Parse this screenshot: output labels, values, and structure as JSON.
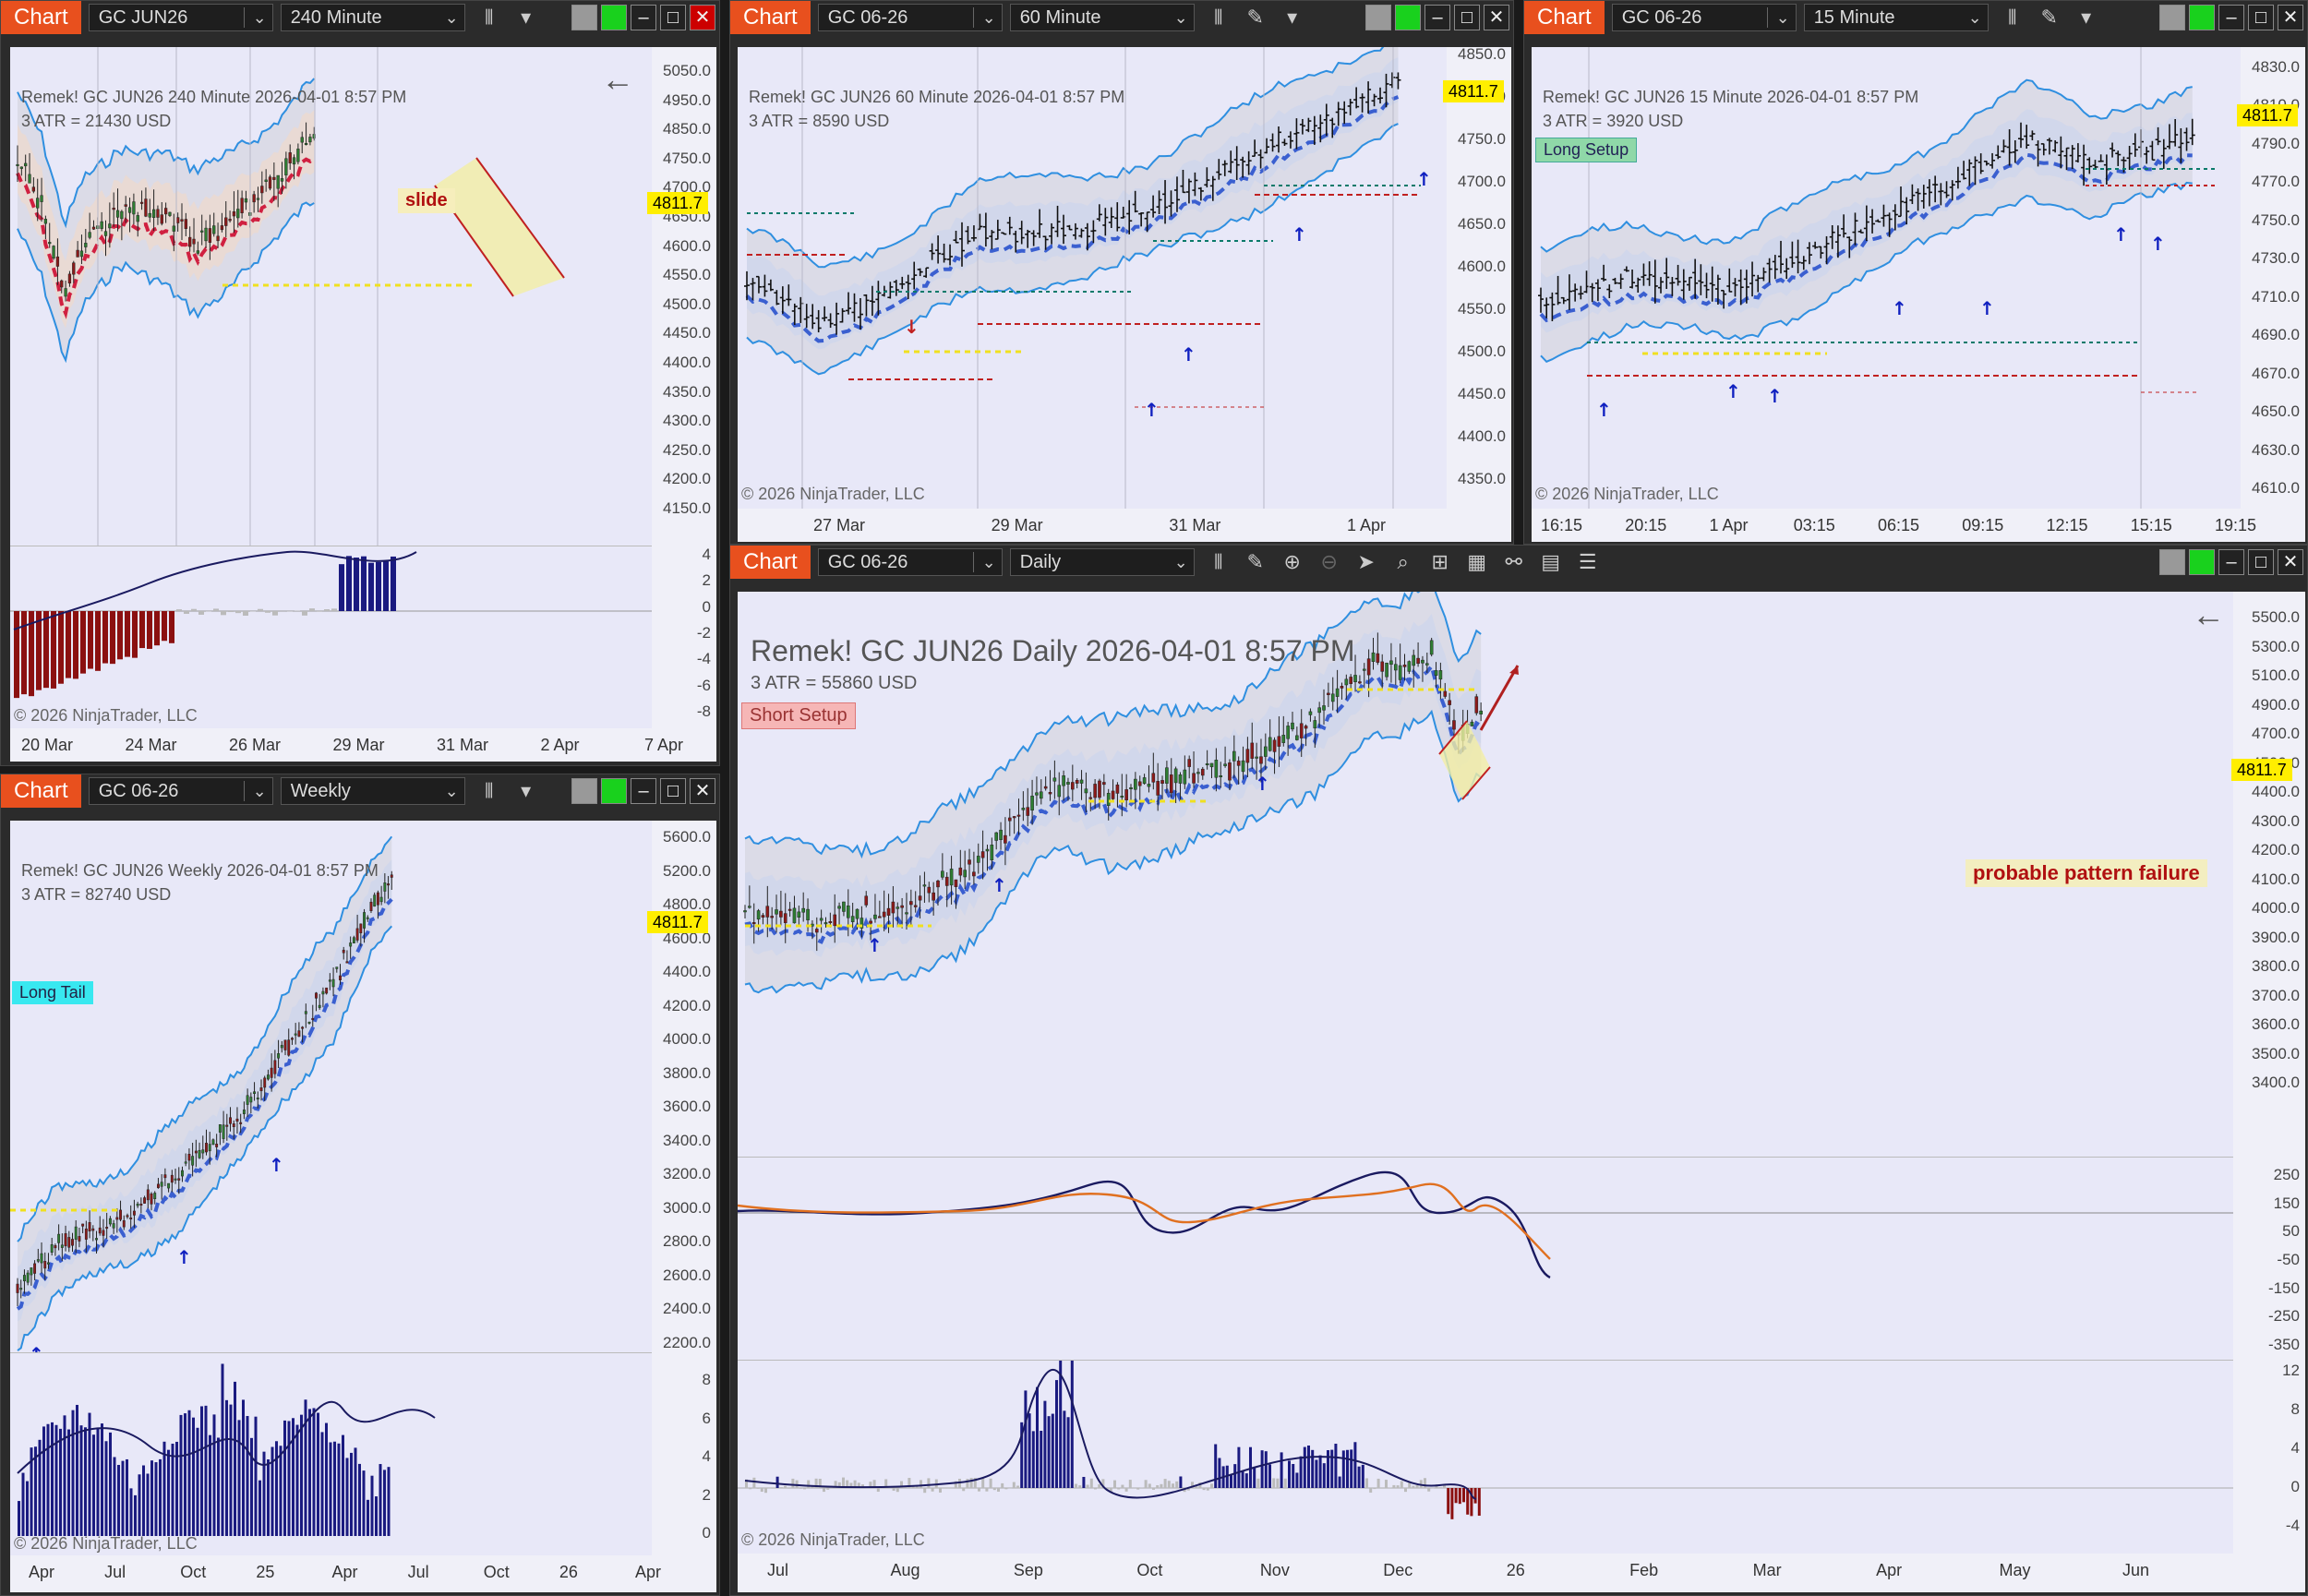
{
  "windows": {
    "w240": {
      "chart_label": "Chart",
      "instrument": "GC JUN26",
      "interval": "240 Minute",
      "title": "Remek!  GC JUN26  240 Minute  2026-04-01 8:57 PM",
      "atr": "3 ATR = 21430 USD",
      "annotation": "slide",
      "copyright": "© 2026 NinjaTrader, LLC",
      "price": "4811.7",
      "yticks": [
        "5050.0",
        "4950.0",
        "4850.0",
        "4750.0",
        "4700.0",
        "4650.0",
        "4600.0",
        "4550.0",
        "4500.0",
        "4450.0",
        "4400.0",
        "4350.0",
        "4300.0",
        "4250.0",
        "4200.0",
        "4150.0"
      ],
      "sub_yticks": [
        "4",
        "2",
        "0",
        "-2",
        "-4",
        "-6",
        "-8"
      ],
      "xticks": [
        "20 Mar",
        "24 Mar",
        "26 Mar",
        "29 Mar",
        "31 Mar",
        "2 Apr",
        "7 Apr"
      ]
    },
    "w60": {
      "chart_label": "Chart",
      "instrument": "GC 06-26",
      "interval": "60 Minute",
      "title": "Remek!  GC JUN26  60 Minute  2026-04-01 8:57 PM",
      "atr": "3 ATR = 8590 USD",
      "copyright": "© 2026 NinjaTrader, LLC",
      "price": "4811.7",
      "yticks": [
        "4850.0",
        "4800.0",
        "4750.0",
        "4700.0",
        "4650.0",
        "4600.0",
        "4550.0",
        "4500.0",
        "4450.0",
        "4400.0",
        "4350.0"
      ],
      "xticks": [
        "27 Mar",
        "29 Mar",
        "31 Mar",
        "1 Apr"
      ]
    },
    "w15": {
      "chart_label": "Chart",
      "instrument": "GC 06-26",
      "interval": "15 Minute",
      "title": "Remek!  GC JUN26  15 Minute  2026-04-01 8:57 PM",
      "atr": "3 ATR = 3920 USD",
      "setup": "Long Setup",
      "copyright": "© 2026 NinjaTrader, LLC",
      "price": "4811.7",
      "yticks": [
        "4830.0",
        "4810.0",
        "4790.0",
        "4770.0",
        "4750.0",
        "4730.0",
        "4710.0",
        "4690.0",
        "4670.0",
        "4650.0",
        "4630.0",
        "4610.0"
      ],
      "xticks": [
        "16:15",
        "20:15",
        "1 Apr",
        "03:15",
        "06:15",
        "09:15",
        "12:15",
        "15:15",
        "19:15"
      ]
    },
    "wweekly": {
      "chart_label": "Chart",
      "instrument": "GC 06-26",
      "interval": "Weekly",
      "title": "Remek!  GC JUN26  Weekly  2026-04-01 8:57 PM",
      "atr": "3 ATR = 82740 USD",
      "setup": "Long Tail",
      "copyright": "© 2026 NinjaTrader, LLC",
      "price": "4811.7",
      "yticks": [
        "5600.0",
        "5200.0",
        "4800.0",
        "4600.0",
        "4400.0",
        "4200.0",
        "4000.0",
        "3800.0",
        "3600.0",
        "3400.0",
        "3200.0",
        "3000.0",
        "2800.0",
        "2600.0",
        "2400.0",
        "2200.0"
      ],
      "sub_yticks": [
        "8",
        "6",
        "4",
        "2",
        "0"
      ],
      "xticks": [
        "Apr",
        "Jul",
        "Oct",
        "25",
        "Apr",
        "Jul",
        "Oct",
        "26",
        "Apr"
      ]
    },
    "wdaily": {
      "chart_label": "Chart",
      "instrument": "GC 06-26",
      "interval": "Daily",
      "title": "Remek!  GC JUN26  Daily  2026-04-01 8:57 PM",
      "atr": "3 ATR = 55860 USD",
      "setup": "Short Setup",
      "annotation": "probable pattern failure",
      "copyright": "© 2026 NinjaTrader, LLC",
      "price": "4811.7",
      "yticks": [
        "5500.0",
        "5300.0",
        "5100.0",
        "4900.0",
        "4700.0",
        "4500.0",
        "4400.0",
        "4300.0",
        "4200.0",
        "4100.0",
        "4000.0",
        "3900.0",
        "3800.0",
        "3700.0",
        "3600.0",
        "3500.0",
        "3400.0"
      ],
      "osc_yticks": [
        "250",
        "150",
        "50",
        "-50",
        "-150",
        "-250",
        "-350"
      ],
      "sub_yticks": [
        "12",
        "8",
        "4",
        "0",
        "-4"
      ],
      "xticks": [
        "Jul",
        "Aug",
        "Sep",
        "Oct",
        "Nov",
        "Dec",
        "26",
        "Feb",
        "Mar",
        "Apr",
        "May",
        "Jun"
      ]
    }
  },
  "colors": {
    "chart_tab": "#e8501e",
    "plot_bg": "#e8e8f8",
    "price_tag": "#ffee00",
    "up_candle": "#2e7d32",
    "down_candle": "#8b1a1a",
    "band": "#2f8fe0",
    "histogram_up": "#1a1a80",
    "histogram_down": "#8b1010"
  }
}
